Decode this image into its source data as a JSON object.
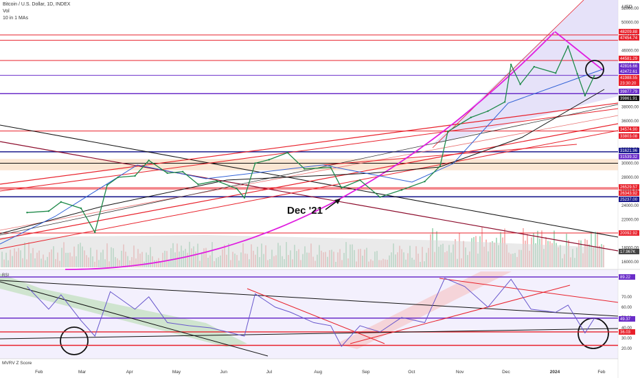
{
  "header": {
    "symbol": "Bitcoin / U.S. Dollar, 1D, INDEX",
    "vol_label": "Vol",
    "ma_label": "10 in 1 MAs"
  },
  "rsi_label": "RSI",
  "mvrv_label": "MVRV Z Score",
  "annotation": "Dec '21",
  "currency": "USD",
  "colors": {
    "red": "#e8202a",
    "magenta": "#e01ee0",
    "purple": "#6a2dc9",
    "navy": "#1a1a8c",
    "black": "#111111",
    "blue_ma": "#2e5fd6",
    "green_vol": "#6bbf8e",
    "red_vol": "#f08080",
    "rsi_line": "#6655cc",
    "zone": "#f9dcc0",
    "channel": "#dcd6f7"
  },
  "chart_data": {
    "type": "line",
    "title": "Bitcoin / U.S. Dollar, 1D, INDEX",
    "x_tick_labels": [
      "Feb",
      "Mar",
      "Apr",
      "May",
      "Jun",
      "Jul",
      "Aug",
      "Sep",
      "Oct",
      "Nov",
      "Dec",
      "2024",
      "Feb"
    ],
    "price_axis_labels": [
      "52000.00",
      "50000.00",
      "48000.00",
      "46000.00",
      "44000.00",
      "42000.00",
      "40000.00",
      "38000.00",
      "36000.00",
      "34000.00",
      "32000.00",
      "30000.00",
      "28000.00",
      "26000.00",
      "24000.00",
      "22000.00",
      "20000.00",
      "18000.00",
      "16000.00"
    ],
    "rsi_axis_labels": [
      "70.00",
      "60.00",
      "50.00",
      "40.00",
      "30.00",
      "20.00"
    ],
    "price_level_tags": [
      {
        "label": "48209.88",
        "color": "#e8202a"
      },
      {
        "label": "47454.74",
        "color": "#e8202a"
      },
      {
        "label": "44581.29",
        "color": "#e8202a"
      },
      {
        "label": "42816.66",
        "color": "#6a2dc9"
      },
      {
        "label": "42472.61",
        "color": "#6a2dc9"
      },
      {
        "label": "41988.55",
        "color": "#e8202a"
      },
      {
        "label": "23:30:20",
        "color": "#e8202a"
      },
      {
        "label": "39877.79",
        "color": "#6a2dc9"
      },
      {
        "label": "39861.91",
        "color": "#111111"
      },
      {
        "label": "34574.90",
        "color": "#e8202a"
      },
      {
        "label": "33803.08",
        "color": "#e8202a"
      },
      {
        "label": "31621.96",
        "color": "#1a1a8c"
      },
      {
        "label": "31539.32",
        "color": "#6a2dc9"
      },
      {
        "label": "26529.57",
        "color": "#e8202a"
      },
      {
        "label": "26343.92",
        "color": "#e8202a"
      },
      {
        "label": "25237.00",
        "color": "#1a1a8c"
      },
      {
        "label": "20092.92",
        "color": "#e8202a"
      },
      {
        "label": "17.967K",
        "color": "#444444"
      }
    ],
    "rsi_level_tags": [
      {
        "label": "89.22",
        "color": "#6a2dc9"
      },
      {
        "label": "49.37",
        "color": "#6a2dc9"
      },
      {
        "label": "36.03",
        "color": "#e8202a"
      }
    ],
    "horizontal_levels": [
      48209.88,
      47454.74,
      44581.29,
      42472.61,
      39877.79,
      34574.9,
      31621.96,
      30000,
      26529.57,
      26343.92,
      25237.0,
      20092.92
    ],
    "price_series": [
      {
        "date": "2023-01-25",
        "close": 23000
      },
      {
        "date": "2023-02-08",
        "close": 23200
      },
      {
        "date": "2023-02-16",
        "close": 24500
      },
      {
        "date": "2023-03-01",
        "close": 23600
      },
      {
        "date": "2023-03-10",
        "close": 20200
      },
      {
        "date": "2023-03-18",
        "close": 26900
      },
      {
        "date": "2023-03-25",
        "close": 28000
      },
      {
        "date": "2023-04-05",
        "close": 28200
      },
      {
        "date": "2023-04-14",
        "close": 30400
      },
      {
        "date": "2023-04-26",
        "close": 28600
      },
      {
        "date": "2023-05-06",
        "close": 28800
      },
      {
        "date": "2023-05-16",
        "close": 27000
      },
      {
        "date": "2023-05-28",
        "close": 27500
      },
      {
        "date": "2023-06-10",
        "close": 26400
      },
      {
        "date": "2023-06-15",
        "close": 25100
      },
      {
        "date": "2023-06-22",
        "close": 30000
      },
      {
        "date": "2023-07-01",
        "close": 30500
      },
      {
        "date": "2023-07-13",
        "close": 31500
      },
      {
        "date": "2023-07-24",
        "close": 29200
      },
      {
        "date": "2023-08-10",
        "close": 29400
      },
      {
        "date": "2023-08-17",
        "close": 26500
      },
      {
        "date": "2023-08-29",
        "close": 27600
      },
      {
        "date": "2023-09-11",
        "close": 25200
      },
      {
        "date": "2023-09-25",
        "close": 26200
      },
      {
        "date": "2023-10-10",
        "close": 27400
      },
      {
        "date": "2023-10-20",
        "close": 29600
      },
      {
        "date": "2023-10-25",
        "close": 34500
      },
      {
        "date": "2023-11-09",
        "close": 36500
      },
      {
        "date": "2023-11-20",
        "close": 37400
      },
      {
        "date": "2023-12-01",
        "close": 38700
      },
      {
        "date": "2023-12-05",
        "close": 44000
      },
      {
        "date": "2023-12-11",
        "close": 41200
      },
      {
        "date": "2023-12-20",
        "close": 43700
      },
      {
        "date": "2024-01-03",
        "close": 42800
      },
      {
        "date": "2024-01-11",
        "close": 46600
      },
      {
        "date": "2024-01-17",
        "close": 42700
      },
      {
        "date": "2024-01-22",
        "close": 39600
      },
      {
        "date": "2024-01-28",
        "close": 42400
      }
    ],
    "rsi_series": [
      {
        "date": "2023-01-25",
        "value": 80
      },
      {
        "date": "2023-02-08",
        "value": 58
      },
      {
        "date": "2023-02-16",
        "value": 72
      },
      {
        "date": "2023-03-01",
        "value": 47
      },
      {
        "date": "2023-03-10",
        "value": 32
      },
      {
        "date": "2023-03-20",
        "value": 75
      },
      {
        "date": "2023-04-05",
        "value": 58
      },
      {
        "date": "2023-04-14",
        "value": 70
      },
      {
        "date": "2023-04-26",
        "value": 45
      },
      {
        "date": "2023-05-10",
        "value": 42
      },
      {
        "date": "2023-05-24",
        "value": 40
      },
      {
        "date": "2023-06-15",
        "value": 32
      },
      {
        "date": "2023-06-22",
        "value": 73
      },
      {
        "date": "2023-07-05",
        "value": 60
      },
      {
        "date": "2023-07-15",
        "value": 55
      },
      {
        "date": "2023-07-30",
        "value": 45
      },
      {
        "date": "2023-08-10",
        "value": 42
      },
      {
        "date": "2023-08-17",
        "value": 22
      },
      {
        "date": "2023-08-29",
        "value": 42
      },
      {
        "date": "2023-09-11",
        "value": 36
      },
      {
        "date": "2023-09-25",
        "value": 50
      },
      {
        "date": "2023-10-10",
        "value": 45
      },
      {
        "date": "2023-10-23",
        "value": 88
      },
      {
        "date": "2023-11-05",
        "value": 80
      },
      {
        "date": "2023-11-20",
        "value": 60
      },
      {
        "date": "2023-12-05",
        "value": 87
      },
      {
        "date": "2023-12-18",
        "value": 58
      },
      {
        "date": "2024-01-03",
        "value": 55
      },
      {
        "date": "2024-01-11",
        "value": 62
      },
      {
        "date": "2024-01-22",
        "value": 35
      },
      {
        "date": "2024-01-28",
        "value": 49
      }
    ]
  }
}
